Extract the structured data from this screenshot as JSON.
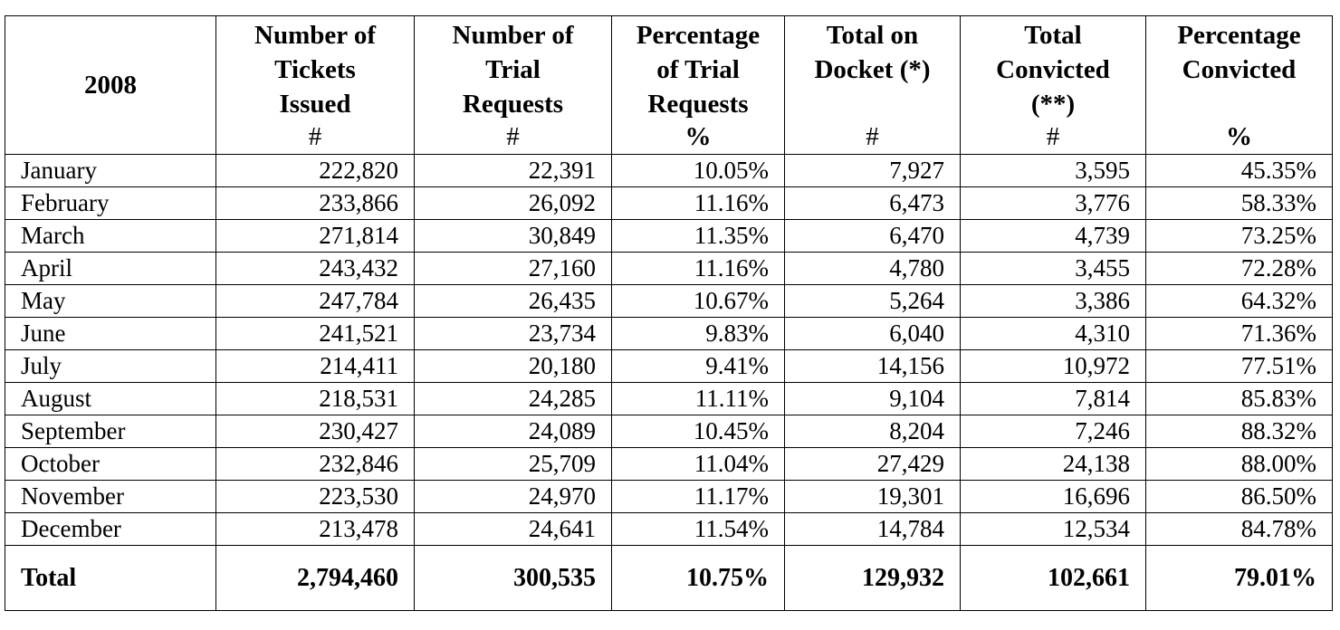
{
  "table": {
    "year_header": "2008",
    "columns": [
      {
        "label_lines": [
          "Number of",
          "Tickets",
          "Issued"
        ],
        "unit": "#"
      },
      {
        "label_lines": [
          "Number of",
          "Trial",
          "Requests"
        ],
        "unit": "#"
      },
      {
        "label_lines": [
          "Percentage",
          "of Trial",
          "Requests"
        ],
        "unit": "%"
      },
      {
        "label_lines": [
          "Total on",
          "Docket (*)"
        ],
        "unit": "#"
      },
      {
        "label_lines": [
          "Total",
          "Convicted",
          "(**)"
        ],
        "unit": "#"
      },
      {
        "label_lines": [
          "Percentage",
          "Convicted"
        ],
        "unit": "%"
      }
    ],
    "rows": [
      {
        "month": "January",
        "values": [
          "222,820",
          "22,391",
          "10.05%",
          "7,927",
          "3,595",
          "45.35%"
        ]
      },
      {
        "month": "February",
        "values": [
          "233,866",
          "26,092",
          "11.16%",
          "6,473",
          "3,776",
          "58.33%"
        ]
      },
      {
        "month": "March",
        "values": [
          "271,814",
          "30,849",
          "11.35%",
          "6,470",
          "4,739",
          "73.25%"
        ]
      },
      {
        "month": "April",
        "values": [
          "243,432",
          "27,160",
          "11.16%",
          "4,780",
          "3,455",
          "72.28%"
        ]
      },
      {
        "month": "May",
        "values": [
          "247,784",
          "26,435",
          "10.67%",
          "5,264",
          "3,386",
          "64.32%"
        ]
      },
      {
        "month": "June",
        "values": [
          "241,521",
          "23,734",
          "9.83%",
          "6,040",
          "4,310",
          "71.36%"
        ]
      },
      {
        "month": "July",
        "values": [
          "214,411",
          "20,180",
          "9.41%",
          "14,156",
          "10,972",
          "77.51%"
        ]
      },
      {
        "month": "August",
        "values": [
          "218,531",
          "24,285",
          "11.11%",
          "9,104",
          "7,814",
          "85.83%"
        ]
      },
      {
        "month": "September",
        "values": [
          "230,427",
          "24,089",
          "10.45%",
          "8,204",
          "7,246",
          "88.32%"
        ]
      },
      {
        "month": "October",
        "values": [
          "232,846",
          "25,709",
          "11.04%",
          "27,429",
          "24,138",
          "88.00%"
        ]
      },
      {
        "month": "November",
        "values": [
          "223,530",
          "24,970",
          "11.17%",
          "19,301",
          "16,696",
          "86.50%"
        ]
      },
      {
        "month": "December",
        "values": [
          "213,478",
          "24,641",
          "11.54%",
          "14,784",
          "12,534",
          "84.78%"
        ]
      }
    ],
    "total": {
      "label": "Total",
      "values": [
        "2,794,460",
        "300,535",
        "10.75%",
        "129,932",
        "102,661",
        "79.01%"
      ]
    }
  }
}
